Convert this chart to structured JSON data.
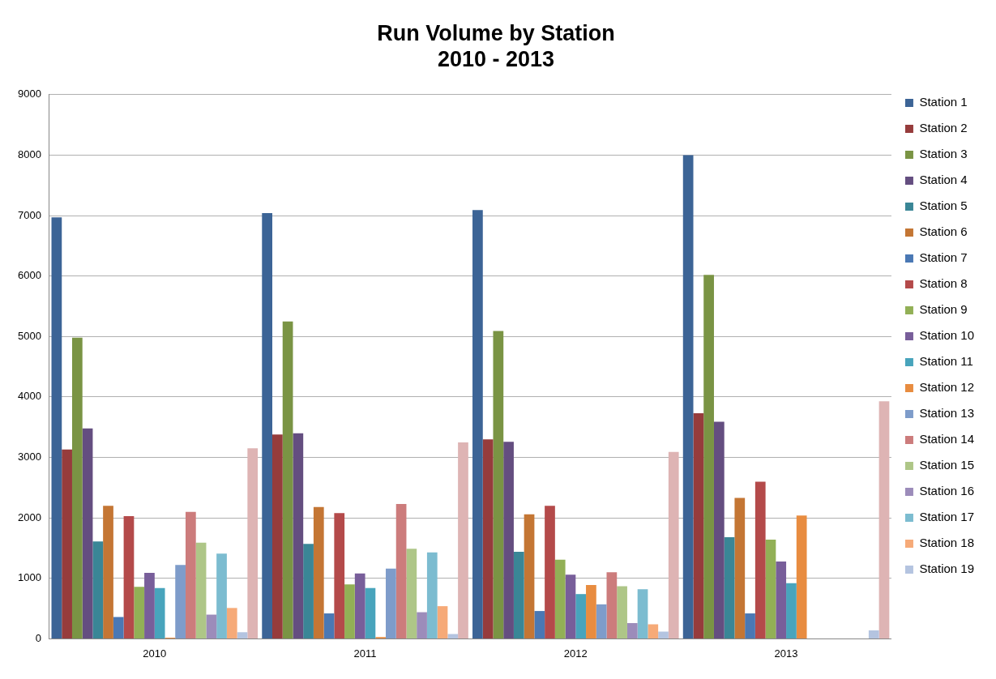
{
  "chart_data": {
    "type": "bar",
    "title": "Run Volume by Station\n2010 - 2013",
    "categories": [
      "2010",
      "2011",
      "2012",
      "2013"
    ],
    "ylim": [
      0,
      9000
    ],
    "yticks": [
      0,
      1000,
      2000,
      3000,
      4000,
      5000,
      6000,
      7000,
      8000,
      9000
    ],
    "grid": "y",
    "legend": "right",
    "series": [
      {
        "name": "Station 1",
        "color": "#3c6496",
        "values": [
          6970,
          7040,
          7090,
          8000
        ]
      },
      {
        "name": "Station 2",
        "color": "#963c3c",
        "values": [
          3130,
          3380,
          3300,
          3730
        ]
      },
      {
        "name": "Station 3",
        "color": "#7a9444",
        "values": [
          4980,
          5250,
          5090,
          6020
        ]
      },
      {
        "name": "Station 4",
        "color": "#644e80",
        "values": [
          3480,
          3400,
          3260,
          3590
        ]
      },
      {
        "name": "Station 5",
        "color": "#3a8696",
        "values": [
          1610,
          1570,
          1440,
          1680
        ]
      },
      {
        "name": "Station 6",
        "color": "#c47634",
        "values": [
          2200,
          2180,
          2060,
          2330
        ]
      },
      {
        "name": "Station 7",
        "color": "#4a78b4",
        "values": [
          360,
          420,
          460,
          420
        ]
      },
      {
        "name": "Station 8",
        "color": "#b44a4a",
        "values": [
          2030,
          2080,
          2200,
          2600
        ]
      },
      {
        "name": "Station 9",
        "color": "#92b056",
        "values": [
          860,
          900,
          1310,
          1640
        ]
      },
      {
        "name": "Station 10",
        "color": "#785e9a",
        "values": [
          1090,
          1080,
          1060,
          1280
        ]
      },
      {
        "name": "Station 11",
        "color": "#48a4bc",
        "values": [
          840,
          840,
          740,
          920
        ]
      },
      {
        "name": "Station 12",
        "color": "#e88c40",
        "values": [
          20,
          30,
          890,
          2040
        ]
      },
      {
        "name": "Station 13",
        "color": "#7e9cca",
        "values": [
          1220,
          1160,
          570,
          null
        ]
      },
      {
        "name": "Station 14",
        "color": "#cc7c7c",
        "values": [
          2100,
          2230,
          1100,
          null
        ]
      },
      {
        "name": "Station 15",
        "color": "#aec687",
        "values": [
          1590,
          1490,
          870,
          null
        ]
      },
      {
        "name": "Station 16",
        "color": "#9c8cba",
        "values": [
          400,
          440,
          260,
          null
        ]
      },
      {
        "name": "Station 17",
        "color": "#7cbcd0",
        "values": [
          1410,
          1430,
          820,
          null
        ]
      },
      {
        "name": "Station 18",
        "color": "#f6aa78",
        "values": [
          510,
          540,
          240,
          null
        ]
      },
      {
        "name": "Station 19",
        "color": "#b4c4e0",
        "values": [
          110,
          80,
          120,
          140
        ]
      },
      {
        "color": "#deb4b4",
        "values": [
          3150,
          3250,
          3090,
          3930
        ]
      }
    ]
  }
}
